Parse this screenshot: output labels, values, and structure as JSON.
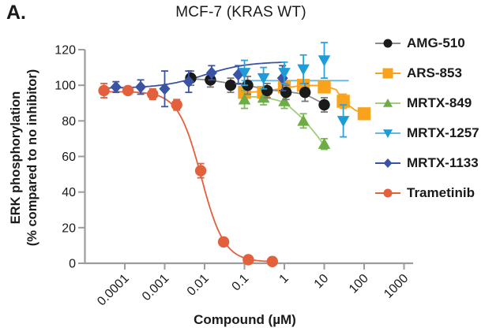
{
  "figure": {
    "panel_label": "A."
  },
  "chart_data": {
    "type": "line",
    "title": "MCF-7 (KRAS WT)",
    "xlabel": "Compound (µM)",
    "ylabel_line1": "ERK phosphorylation",
    "ylabel_line2": "(% compared to no inhibitor)",
    "x_scale": "log",
    "x_ticks": [
      "0.0001",
      "0.001",
      "0.01",
      "0.1",
      "1",
      "10",
      "100",
      "1000"
    ],
    "y_ticks": [
      0,
      20,
      40,
      60,
      80,
      100,
      120
    ],
    "ylim": [
      0,
      120
    ],
    "grid": false,
    "legend_position": "right",
    "axis_color": "#9c9c9c",
    "text_color": "#1a1a1a",
    "series": [
      {
        "name": "ARS-853",
        "marker": "square",
        "marker_color": "#f9a21b",
        "line_color": "#f9a21b",
        "err_color": "#f9a21b",
        "x": [
          0.1,
          0.3,
          1,
          3,
          10,
          30,
          100
        ],
        "y": [
          96,
          96,
          99,
          100,
          99,
          91,
          84
        ],
        "err": [
          3,
          3,
          2,
          2,
          3,
          4,
          3
        ],
        "fit": {
          "type": "points",
          "pts": [
            [
              0.09,
              96
            ],
            [
              0.3,
              96.5
            ],
            [
              1,
              98.5
            ],
            [
              3,
              100
            ],
            [
              10,
              99.8
            ],
            [
              20,
              97.5
            ],
            [
              30,
              91
            ],
            [
              60,
              86
            ],
            [
              100,
              84
            ]
          ]
        }
      },
      {
        "name": "MRTX-849",
        "marker": "triangle-up",
        "marker_color": "#6ead45",
        "line_color": "#a2cc7a",
        "err_color": "#7eb957",
        "x": [
          0.1,
          0.3,
          1,
          3,
          10
        ],
        "y": [
          92,
          93,
          91,
          80,
          67
        ],
        "err": [
          5,
          4,
          4,
          4,
          3
        ],
        "fit": {
          "type": "points",
          "pts": [
            [
              0.09,
              93.5
            ],
            [
              0.3,
              93.5
            ],
            [
              1,
              90.5
            ],
            [
              3,
              81
            ],
            [
              7,
              71
            ],
            [
              11.5,
              64
            ]
          ]
        }
      },
      {
        "name": "AMG-510",
        "marker": "circle",
        "marker_color": "#1a1a1a",
        "line_color": "#8c8c8c",
        "err_color": "#777777",
        "x": [
          0.0045,
          0.014,
          0.045,
          0.12,
          0.37,
          1.1,
          3.3,
          10
        ],
        "y": [
          104,
          103,
          100,
          100,
          97,
          96,
          96,
          89
        ],
        "err": [
          4,
          4,
          4,
          5,
          4,
          4,
          5,
          4
        ],
        "fit": {
          "type": "points",
          "pts": [
            [
              0.0042,
              103.8
            ],
            [
              0.014,
              102.8
            ],
            [
              0.045,
              101
            ],
            [
              0.12,
              100
            ],
            [
              0.37,
              97.5
            ],
            [
              1.1,
              96.5
            ],
            [
              3.3,
              95
            ],
            [
              10,
              89.5
            ]
          ]
        }
      },
      {
        "name": "MRTX-1133",
        "marker": "diamond",
        "marker_color": "#3a53a4",
        "line_color": "#3a53a4",
        "err_color": "#3a53a4",
        "x": [
          6e-05,
          0.00025,
          0.001,
          0.004,
          0.015,
          0.07,
          0.9
        ],
        "y": [
          99,
          99,
          98,
          102,
          107,
          106,
          104
        ],
        "err": [
          3,
          4,
          10,
          6,
          4,
          5,
          7
        ],
        "fit": {
          "type": "logistic",
          "bottom": 98.3,
          "top": 113.3,
          "ec50": 0.01,
          "hill": 0.8,
          "domain": [
            3.2e-05,
            1.0
          ]
        }
      },
      {
        "name": "MRTX-1257",
        "marker": "triangle-down",
        "marker_color": "#1e9cd8",
        "line_color": "#5fb8e5",
        "err_color": "#29a3db",
        "x": [
          0.1,
          0.3,
          1,
          3,
          10,
          30
        ],
        "y": [
          107,
          104,
          107,
          109,
          114,
          80
        ],
        "err": [
          7,
          6,
          6,
          8,
          10,
          9
        ],
        "fit": {
          "type": "points",
          "pts": [
            [
              0.085,
              102.6
            ],
            [
              40,
              102.6
            ]
          ]
        }
      },
      {
        "name": "Trametinib",
        "marker": "circle",
        "marker_color": "#e2603c",
        "line_color": "#e2603c",
        "err_color": "#e2603c",
        "x": [
          3e-05,
          0.00012,
          0.0005,
          0.002,
          0.008,
          0.03,
          0.125,
          0.5
        ],
        "y": [
          97,
          97,
          95,
          89,
          52,
          12,
          2,
          1
        ],
        "err": [
          4,
          2,
          3,
          3,
          4,
          2,
          1,
          1
        ],
        "fit": {
          "type": "logistic",
          "bottom": 0.8,
          "top": 96.4,
          "ec50": 0.0082,
          "hill": -1.5,
          "domain": [
            3e-05,
            0.5
          ]
        }
      }
    ],
    "legend_order": [
      "AMG-510",
      "ARS-853",
      "MRTX-849",
      "MRTX-1257",
      "MRTX-1133",
      "Trametinib"
    ]
  }
}
